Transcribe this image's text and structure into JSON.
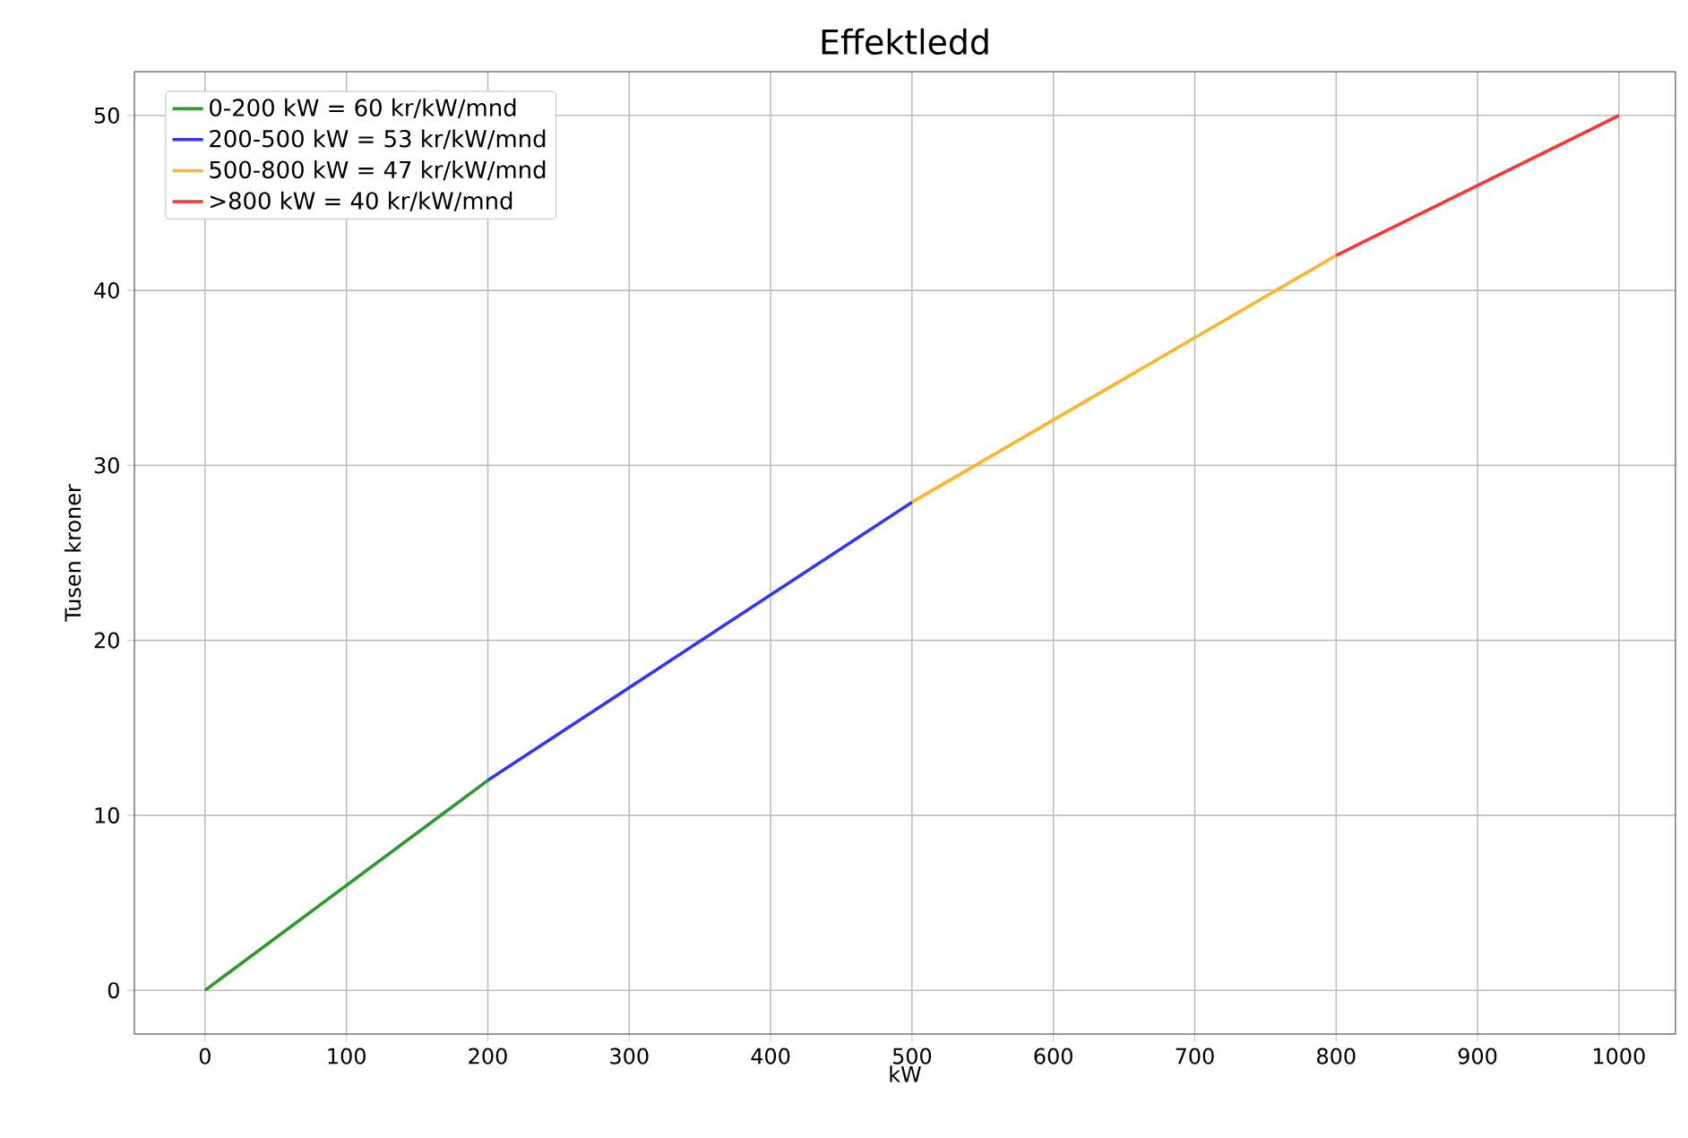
{
  "chart_data": {
    "type": "line",
    "title": "Effektledd",
    "xlabel": "kW",
    "ylabel": "Tusen kroner",
    "series": [
      {
        "name": "0-200 kW = 60 kr/kW/mnd",
        "color": "#2b992b",
        "x": [
          0,
          200
        ],
        "values": [
          0,
          12
        ]
      },
      {
        "name": "200-500 kW = 53 kr/kW/mnd",
        "color": "#3333ff",
        "x": [
          200,
          500
        ],
        "values": [
          12,
          27.9
        ]
      },
      {
        "name": "500-800 kW = 47 kr/kW/mnd",
        "color": "#ffb428",
        "x": [
          500,
          800
        ],
        "values": [
          27.9,
          42
        ]
      },
      {
        "name": ">800 kW = 40 kr/kW/mnd",
        "color": "#ff3333",
        "x": [
          800,
          1000
        ],
        "values": [
          42,
          50
        ]
      }
    ],
    "xlim": [
      -50,
      1040
    ],
    "ylim": [
      -2.5,
      52.5
    ],
    "xticks": [
      0,
      100,
      200,
      300,
      400,
      500,
      600,
      700,
      800,
      900,
      1000
    ],
    "yticks": [
      0,
      10,
      20,
      30,
      40,
      50
    ],
    "grid": true,
    "legend": "top left",
    "marker": "none",
    "line_style": "solid"
  }
}
